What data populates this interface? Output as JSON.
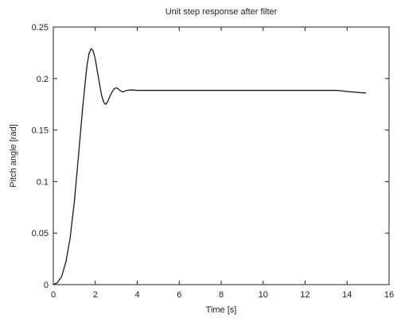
{
  "chart_data": {
    "type": "line",
    "title": "Unit step response after filter",
    "xlabel": "Time [s]",
    "ylabel": "Pitch angle [rad]",
    "xlim": [
      0,
      16
    ],
    "ylim": [
      0,
      0.25
    ],
    "x_ticks": [
      0,
      2,
      4,
      6,
      8,
      10,
      12,
      14,
      16
    ],
    "y_ticks": [
      0,
      0.05,
      0.1,
      0.15,
      0.2,
      0.25
    ],
    "x_tick_labels": [
      "0",
      "2",
      "4",
      "6",
      "8",
      "10",
      "12",
      "14",
      "16"
    ],
    "y_tick_labels": [
      "0",
      "0.05",
      "0.1",
      "0.15",
      "0.2",
      "0.25"
    ],
    "grid": false,
    "series": [
      {
        "color": "#1a1a1a",
        "x": [
          0,
          0.2,
          0.4,
          0.6,
          0.8,
          1.0,
          1.2,
          1.4,
          1.6,
          1.7,
          1.8,
          1.9,
          2.0,
          2.1,
          2.2,
          2.3,
          2.4,
          2.5,
          2.6,
          2.7,
          2.8,
          2.9,
          3.0,
          3.1,
          3.2,
          3.3,
          3.5,
          3.7,
          4.0,
          5,
          6,
          8,
          10,
          12,
          13.5,
          14.2,
          14.9
        ],
        "y": [
          0,
          0.002,
          0.008,
          0.022,
          0.045,
          0.08,
          0.125,
          0.172,
          0.212,
          0.224,
          0.229,
          0.227,
          0.219,
          0.207,
          0.195,
          0.184,
          0.177,
          0.175,
          0.178,
          0.183,
          0.187,
          0.19,
          0.191,
          0.19,
          0.188,
          0.187,
          0.1885,
          0.189,
          0.1885,
          0.1885,
          0.1885,
          0.1885,
          0.1885,
          0.1885,
          0.1885,
          0.187,
          0.186
        ]
      }
    ]
  }
}
